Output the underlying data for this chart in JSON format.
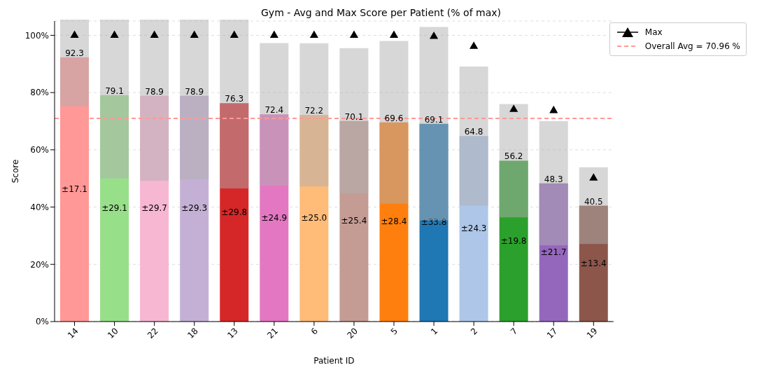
{
  "chart_data": {
    "type": "bar",
    "title": "Gym - Avg and Max Score per Patient (% of max)",
    "xlabel": "Patient ID",
    "ylabel": "Score",
    "categories": [
      "14",
      "10",
      "22",
      "18",
      "13",
      "21",
      "6",
      "20",
      "5",
      "1",
      "2",
      "7",
      "17",
      "19"
    ],
    "series": [
      {
        "values": [
          92.3,
          79.1,
          78.9,
          78.9,
          76.3,
          72.4,
          72.2,
          70.1,
          69.6,
          69.1,
          64.8,
          56.2,
          48.3,
          40.5
        ],
        "value_labels": [
          "92.3",
          "79.1",
          "78.9",
          "78.9",
          "76.3",
          "72.4",
          "72.2",
          "70.1",
          "69.6",
          "69.1",
          "64.8",
          "56.2",
          "48.3",
          "40.5"
        ],
        "errors": [
          17.1,
          29.1,
          29.7,
          29.3,
          29.8,
          24.9,
          25.0,
          25.4,
          28.4,
          33.8,
          24.3,
          19.8,
          21.7,
          13.4
        ],
        "colors": [
          "#ff9896",
          "#98df8a",
          "#f7b6d2",
          "#c5b0d5",
          "#d62728",
          "#e377c2",
          "#ffbb78",
          "#c49c94",
          "#ff7f0e",
          "#1f77b4",
          "#aec7e8",
          "#2ca02c",
          "#9467bd",
          "#8c564b"
        ]
      },
      {
        "name": "Max",
        "type": "scatter",
        "color": "#000000",
        "x": [
          "14",
          "10",
          "22",
          "18",
          "13",
          "21",
          "6",
          "20",
          "5",
          "1",
          "2",
          "7",
          "17",
          "19"
        ],
        "values": [
          100,
          100,
          100,
          100,
          100,
          100,
          100,
          100,
          100,
          99.6,
          96.1,
          74.1,
          73.7,
          50.1
        ]
      }
    ],
    "marker": "triangle",
    "annotations": [
      "±17.1",
      "±29.1",
      "±29.7",
      "±29.3",
      "±29.8",
      "±24.9",
      "±25.0",
      "±25.4",
      "±28.4",
      "±33.8",
      "±24.3",
      "±19.8",
      "±21.7",
      "±13.4"
    ],
    "ref_lines": [
      {
        "axis": "y",
        "value": 70.96,
        "label": "Overall Avg = 70.96 %",
        "color": "#ff9999",
        "line_style": "dashed"
      }
    ],
    "ylim": [
      0,
      105
    ],
    "yticks": [
      {
        "value": 0,
        "label": "0%"
      },
      {
        "value": 20,
        "label": "20%"
      },
      {
        "value": 40,
        "label": "40%"
      },
      {
        "value": 60,
        "label": "60%"
      },
      {
        "value": 80,
        "label": "80%"
      },
      {
        "value": 100,
        "label": "100%"
      }
    ],
    "grid": "y",
    "legend": "top right"
  }
}
